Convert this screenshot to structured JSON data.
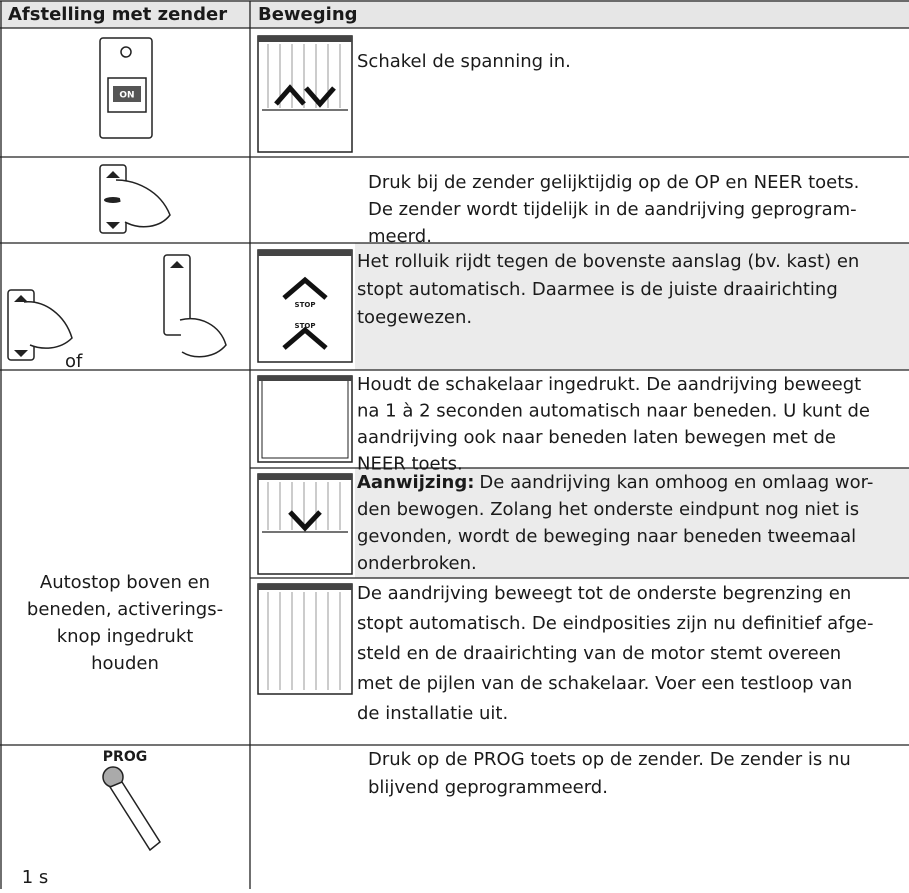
{
  "table": {
    "header": [
      "Afstelling met zender",
      "Beweging"
    ],
    "rows": [
      {
        "icon_label": "ON",
        "lines": [
          "Schakel de spanning in."
        ]
      },
      {
        "lines": [
          "Druk bij de zender gelijktijdig op de OP en NEER toets.",
          "De zender wordt tijdelijk in de aandrijving geprogram-",
          "meerd."
        ]
      },
      {
        "left_label": "of",
        "stop_labels": [
          "STOP",
          "STOP"
        ],
        "lines": [
          "Het rolluik rijdt tegen de bovenste aanslag (bv. kast) en",
          "stopt automatisch. Daarmee is de juiste draairichting",
          "toegewezen."
        ]
      },
      {
        "left_lines": [
          "Autostop boven en",
          "beneden, activerings-",
          "knop ingedrukt",
          "houden"
        ],
        "steps": [
          {
            "lines": [
              "Houdt de schakelaar ingedrukt. De aandrijving beweegt",
              "na 1 à 2 seconden automatisch naar beneden. U kunt de",
              "aandrijving ook naar beneden laten bewegen met de",
              "NEER toets."
            ]
          },
          {
            "bold": "Aanwijzing:",
            "lines": [
              "De aandrijving kan omhoog en omlaag wor-",
              "den bewogen. Zolang het onderste eindpunt nog niet is",
              "gevonden, wordt de beweging naar beneden tweemaal",
              "onderbroken."
            ]
          },
          {
            "lines": [
              "De aandrijving beweegt tot de onderste begrenzing en",
              "stopt automatisch. De eindposities zijn nu definitief afge-",
              "steld en de draairichting van de motor stemt overeen",
              "met de pijlen van de schakelaar. Voer een testloop van",
              "de installatie uit."
            ]
          }
        ]
      },
      {
        "icon_labels": [
          "PROG",
          "1 s"
        ],
        "lines": [
          "Druk op de PROG toets op de zender. De zender is nu",
          "blijvend geprogrammeerd."
        ]
      }
    ]
  }
}
